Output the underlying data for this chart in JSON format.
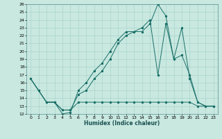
{
  "title": "",
  "xlabel": "Humidex (Indice chaleur)",
  "xlim": [
    -0.5,
    23.5
  ],
  "ylim": [
    12,
    26
  ],
  "xticks": [
    0,
    1,
    2,
    3,
    4,
    5,
    6,
    7,
    8,
    9,
    10,
    11,
    12,
    13,
    14,
    15,
    16,
    17,
    18,
    19,
    20,
    21,
    22,
    23
  ],
  "yticks": [
    12,
    13,
    14,
    15,
    16,
    17,
    18,
    19,
    20,
    21,
    22,
    23,
    24,
    25,
    26
  ],
  "bg_color": "#c8e8e0",
  "grid_color": "#aad4cc",
  "line_color": "#1a7068",
  "line1_x": [
    0,
    1,
    2,
    3,
    4,
    5,
    6,
    7,
    8,
    9,
    10,
    11,
    12,
    13,
    14,
    15,
    16,
    17,
    18,
    19,
    20,
    21,
    22,
    23
  ],
  "line1_y": [
    16.5,
    15.0,
    13.5,
    13.5,
    12.0,
    12.2,
    15.0,
    16.0,
    17.5,
    18.5,
    20.0,
    21.5,
    22.5,
    22.5,
    22.5,
    23.5,
    26.0,
    24.5,
    19.0,
    19.5,
    17.0,
    13.5,
    13.0,
    13.0
  ],
  "line2_x": [
    0,
    1,
    2,
    3,
    4,
    5,
    6,
    7,
    8,
    9,
    10,
    11,
    12,
    13,
    14,
    15,
    16,
    17,
    18,
    19,
    20,
    21,
    22,
    23
  ],
  "line2_y": [
    16.5,
    15.0,
    13.5,
    13.5,
    12.5,
    12.5,
    14.5,
    15.0,
    16.5,
    17.5,
    19.0,
    21.0,
    22.0,
    22.5,
    23.0,
    24.0,
    17.0,
    23.5,
    19.0,
    23.0,
    16.5,
    13.5,
    13.0,
    13.0
  ],
  "line3_x": [
    0,
    1,
    2,
    3,
    4,
    5,
    6,
    7,
    8,
    9,
    10,
    11,
    12,
    13,
    14,
    15,
    16,
    17,
    18,
    19,
    20,
    21,
    22,
    23
  ],
  "line3_y": [
    16.5,
    15.0,
    13.5,
    13.5,
    12.5,
    12.5,
    13.5,
    13.5,
    13.5,
    13.5,
    13.5,
    13.5,
    13.5,
    13.5,
    13.5,
    13.5,
    13.5,
    13.5,
    13.5,
    13.5,
    13.5,
    13.0,
    13.0,
    13.0
  ]
}
